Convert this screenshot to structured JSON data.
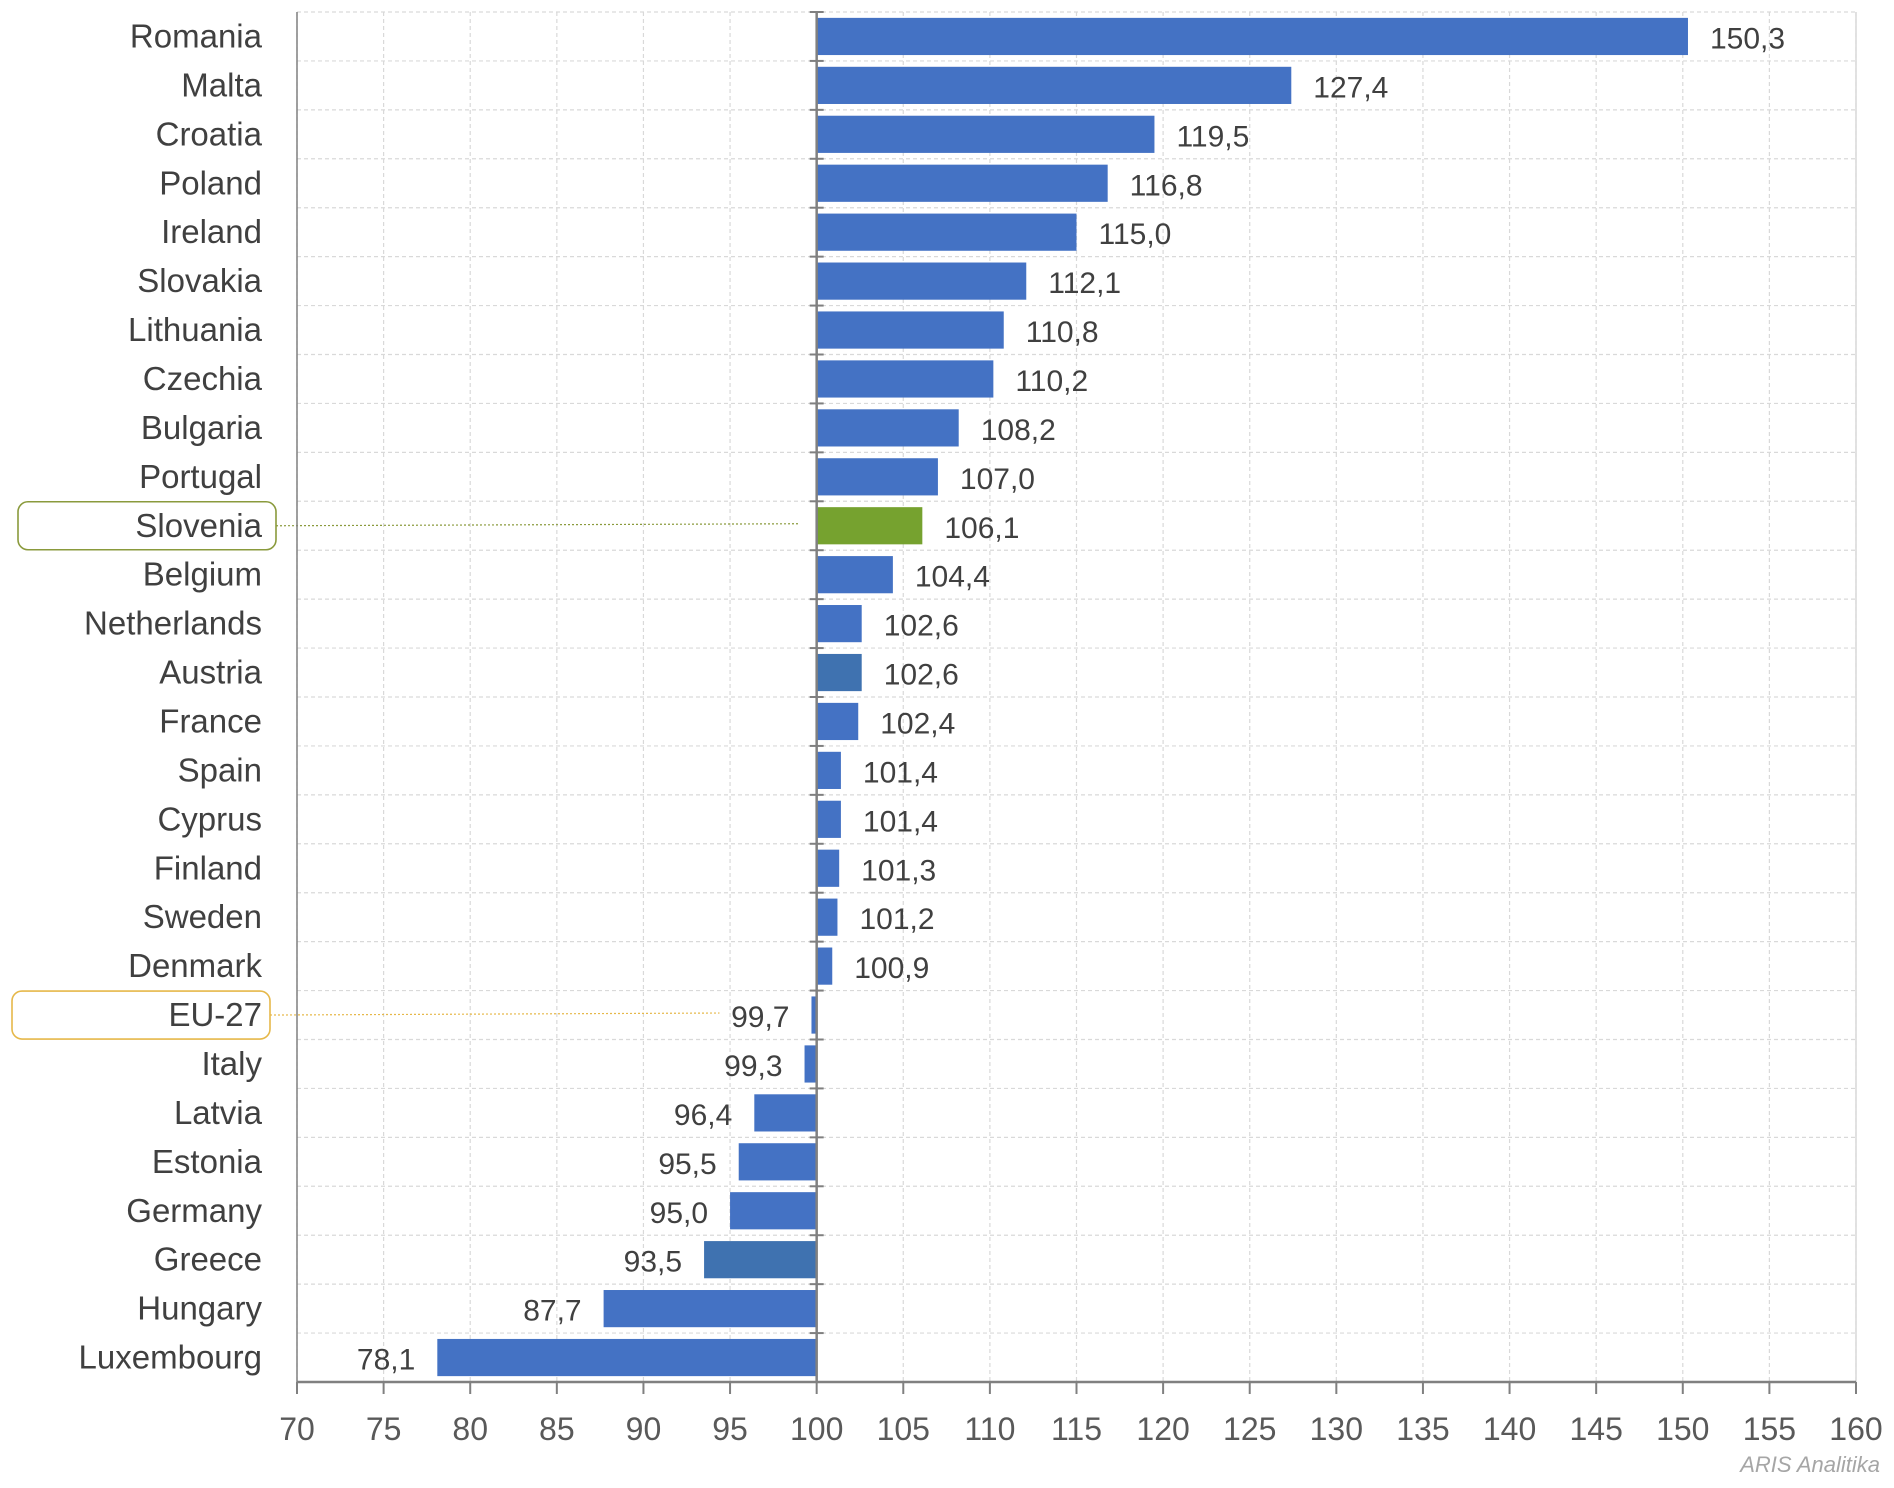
{
  "chart_data": {
    "type": "bar",
    "orientation": "horizontal",
    "categories": [
      "Romania",
      "Malta",
      "Croatia",
      "Poland",
      "Ireland",
      "Slovakia",
      "Lithuania",
      "Czechia",
      "Bulgaria",
      "Portugal",
      "Slovenia",
      "Belgium",
      "Netherlands",
      "Austria",
      "France",
      "Spain",
      "Cyprus",
      "Finland",
      "Sweden",
      "Denmark",
      "EU-27",
      "Italy",
      "Latvia",
      "Estonia",
      "Germany",
      "Greece",
      "Hungary",
      "Luxembourg"
    ],
    "values": [
      150.3,
      127.4,
      119.5,
      116.8,
      115.0,
      112.1,
      110.8,
      110.2,
      108.2,
      107.0,
      106.1,
      104.4,
      102.6,
      102.6,
      102.4,
      101.4,
      101.4,
      101.3,
      101.2,
      100.9,
      99.7,
      99.3,
      96.4,
      95.5,
      95.0,
      93.5,
      87.7,
      78.1
    ],
    "value_labels": [
      "150,3",
      "127,4",
      "119,5",
      "116,8",
      "115,0",
      "112,1",
      "110,8",
      "110,2",
      "108,2",
      "107,0",
      "106,1",
      "104,4",
      "102,6",
      "102,6",
      "102,4",
      "101,4",
      "101,4",
      "101,3",
      "101,2",
      "100,9",
      "99,7",
      "99,3",
      "96,4",
      "95,5",
      "95,0",
      "93,5",
      "87,7",
      "78,1"
    ],
    "baseline": 100,
    "xlim": [
      70,
      160
    ],
    "xticks": [
      70,
      75,
      80,
      85,
      90,
      95,
      100,
      105,
      110,
      115,
      120,
      125,
      130,
      135,
      140,
      145,
      150,
      155,
      160
    ],
    "grid": true,
    "colors": {
      "default": "#4472c4",
      "Slovenia": "#76a22f",
      "Austria": "#3f72b0",
      "Greece": "#3f72b0",
      "axis": "#808080",
      "grid": "#d9d9d9"
    },
    "highlights": [
      {
        "category": "Slovenia",
        "box_color": "#8a9a3c"
      },
      {
        "category": "EU-27",
        "box_color": "#e6b84a"
      }
    ],
    "title": "",
    "xlabel": "",
    "ylabel": ""
  },
  "watermark": "ARIS Analitika"
}
